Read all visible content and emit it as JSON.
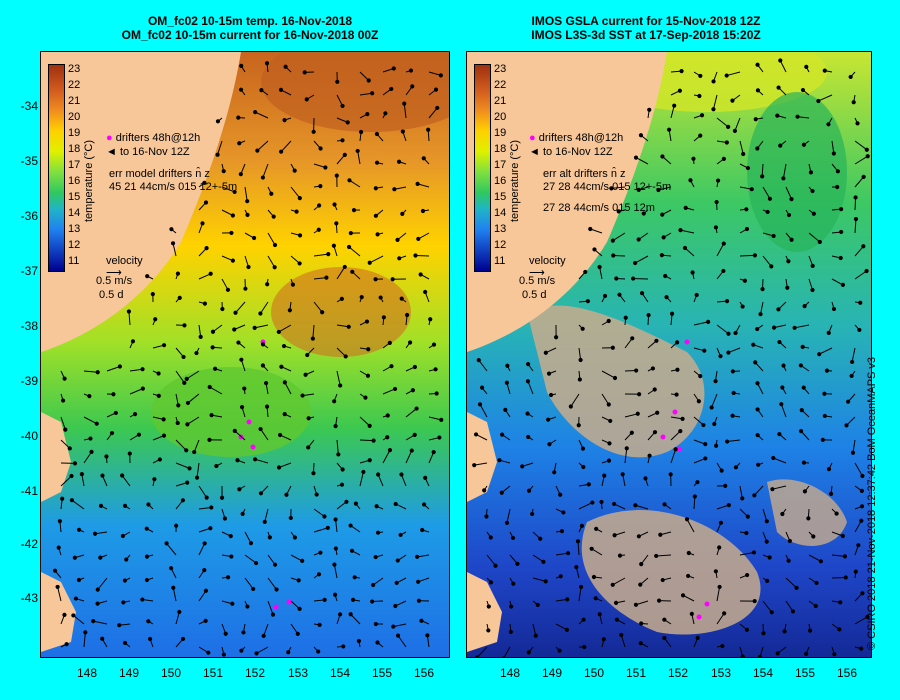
{
  "left_panel": {
    "title_line1": "OM_fc02 10-15m temp. 16-Nov-2018",
    "title_line2": "OM_fc02 10-15m current for 16-Nov-2018 00Z",
    "colorbar_title": "temperature (°C)",
    "drifters_line": "drifters 48h@12h",
    "to_line": "to 16-Nov 12Z",
    "err_line1": "err model drifters n̂ z",
    "err_line2": "45 21 44cm/s 015 12+-5m",
    "velocity_title": "velocity",
    "velocity_scale": "0.5 m/s",
    "velocity_days": "0.5 d"
  },
  "right_panel": {
    "title_line1": "IMOS GSLA current for 15-Nov-2018 12Z",
    "title_line2": "IMOS L3S-3d SST at 17-Sep-2018 15:20Z",
    "colorbar_title": "temperature (°C)",
    "drifters_line": "drifters 48h@12h",
    "to_line": "to 16-Nov 12Z",
    "err_line1": "err alt drifters n̂ z",
    "err_line2": "27 28 44cm/s 015 12+-5m",
    "err_line3": "27 28 44cm/s 015 12m",
    "velocity_title": "velocity",
    "velocity_scale": "0.5 m/s",
    "velocity_days": "0.5 d"
  },
  "colorbar_ticks": [
    "23",
    "22",
    "21",
    "20",
    "19",
    "18",
    "17",
    "16",
    "15",
    "14",
    "13",
    "12",
    "11"
  ],
  "lat_ticks": [
    "-34",
    "-35",
    "-36",
    "-37",
    "-38",
    "-39",
    "-40",
    "-41",
    "-42",
    "-43"
  ],
  "lon_ticks": [
    "148",
    "149",
    "150",
    "151",
    "152",
    "153",
    "154",
    "155",
    "156"
  ],
  "credit": "© CSIRO 2018   21-Nov-2018 12:37:42 BoM OceanMAPS v3",
  "colors": {
    "background": "#00ffff",
    "land": "#f7c79a",
    "cloud_mask": "#c8ab8c",
    "drifter": "#ff00ff"
  }
}
